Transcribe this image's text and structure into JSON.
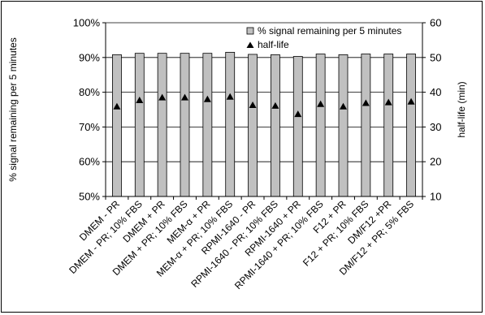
{
  "chart_data": {
    "type": "bar",
    "categories": [
      "DMEM - PR",
      "DMEM - PR; 10% FBS",
      "DMEM + PR",
      "DMEM + PR; 10% FBS",
      "MEM-α + PR",
      "MEM-α + PR; 10% FBS",
      "RPMI-1640 - PR",
      "RPMI-1640 - PR; 10% FBS",
      "RPMI-1640 + PR",
      "RPMI-1640 + PR; 10% FBS",
      "F12 + PR",
      "F12 + PR; 10% FBS",
      "DM/F12 +PR",
      "DM/F12 + PR; 5% FBS"
    ],
    "series": [
      {
        "name": "% signal remaining per 5 minutes",
        "kind": "bar",
        "axis": "left",
        "values": [
          90.8,
          91.2,
          91.2,
          91.2,
          91.2,
          91.5,
          90.9,
          90.8,
          90.3,
          91.0,
          90.8,
          91.0,
          91.0,
          91.0
        ]
      },
      {
        "name": "half-life",
        "kind": "marker",
        "marker": "triangle",
        "axis": "right",
        "values": [
          36.0,
          37.8,
          38.6,
          38.6,
          38.1,
          38.8,
          36.4,
          36.2,
          33.8,
          36.7,
          36.0,
          37.0,
          37.2,
          37.4
        ]
      }
    ],
    "ylabel": "% signal remaining per 5 minutes",
    "ylabel_right": "half-life (min)",
    "ylim": [
      50,
      100
    ],
    "ylim_right": [
      10,
      60
    ],
    "yticks": [
      "50%",
      "60%",
      "70%",
      "80%",
      "90%",
      "100%"
    ],
    "yticks_right": [
      "10",
      "20",
      "30",
      "40",
      "50",
      "60"
    ],
    "grid": true,
    "legend_position": "top-right",
    "colors": {
      "bar_fill": "#c0c0c0",
      "bar_stroke": "#000000",
      "marker": "#000000",
      "grid": "#000000"
    }
  }
}
